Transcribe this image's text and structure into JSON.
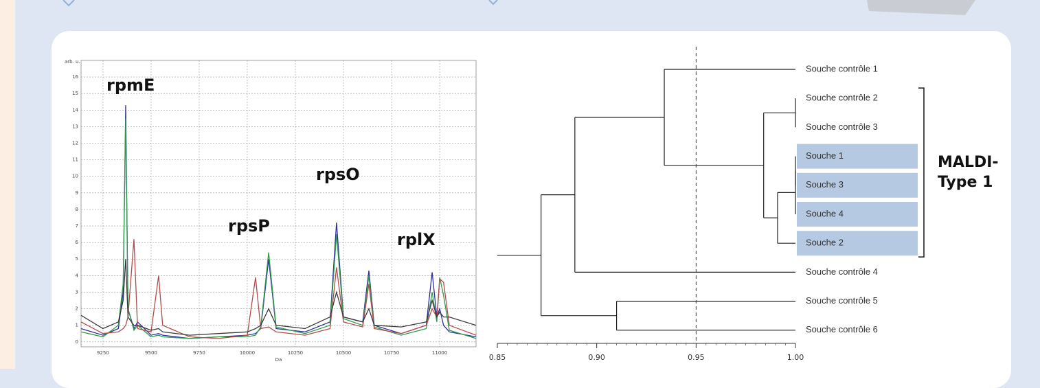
{
  "chart_data": [
    {
      "type": "line",
      "xlabel": "Da",
      "ylabel": "arb. u.",
      "x": [
        9136,
        9250,
        9330,
        9355,
        9368,
        9380,
        9411,
        9430,
        9500,
        9539,
        9560,
        9700,
        9850,
        10000,
        10043,
        10070,
        10111,
        10150,
        10300,
        10430,
        10464,
        10500,
        10600,
        10632,
        10660,
        10800,
        10930,
        10961,
        10985,
        11000,
        11020,
        11050,
        11189
      ],
      "series": [
        {
          "color": "#2c2f9c",
          "values": [
            0.8,
            0.4,
            0.8,
            3,
            14.3,
            2,
            0.8,
            1.2,
            0.4,
            0.5,
            0.4,
            0.2,
            0.3,
            0.4,
            0.5,
            0.8,
            5,
            0.8,
            0.6,
            1.2,
            7.2,
            1.5,
            1.2,
            4.3,
            1,
            0.5,
            1,
            4.2,
            1.5,
            2,
            1,
            0.6,
            0.3
          ]
        },
        {
          "color": "#2f9a4c",
          "values": [
            0.6,
            0.3,
            1,
            3.5,
            13.5,
            2,
            0.7,
            1,
            0.3,
            0.4,
            0.3,
            0.2,
            0.3,
            0.3,
            0.4,
            0.9,
            5.4,
            0.9,
            0.5,
            1,
            6.5,
            1.4,
            1,
            4,
            0.9,
            0.4,
            0.8,
            3,
            1.2,
            3.9,
            2.8,
            0.7,
            0.2
          ]
        },
        {
          "color": "#b24a4a",
          "values": [
            1.2,
            0.5,
            0.6,
            0.8,
            1,
            1.5,
            6.2,
            0.8,
            0.6,
            4,
            1,
            0.3,
            0.2,
            0.4,
            3.9,
            0.8,
            0.9,
            0.6,
            0.4,
            0.8,
            4.5,
            1.2,
            0.9,
            3.5,
            0.8,
            0.5,
            1,
            2,
            1.5,
            3.8,
            3.6,
            1,
            0.4
          ]
        },
        {
          "color": "#3a3a3a",
          "values": [
            1.6,
            0.8,
            1.2,
            2.5,
            5,
            1.5,
            1,
            1,
            0.7,
            0.8,
            0.6,
            0.4,
            0.5,
            0.6,
            0.8,
            1,
            2,
            1,
            0.8,
            1.5,
            3,
            1.5,
            1.2,
            2,
            1,
            0.9,
            1.2,
            2.5,
            1.5,
            1.8,
            1.5,
            1.5,
            1
          ]
        }
      ],
      "annotations": [
        "rpmE",
        "rpsP",
        "rpsO",
        "rplX"
      ],
      "xlim": [
        9136,
        11189
      ],
      "ylim": [
        -0.3,
        17
      ],
      "xticks": [
        9250,
        9500,
        9750,
        10000,
        10250,
        10500,
        10750,
        11000
      ],
      "yticks": [
        0,
        1,
        2,
        3,
        4,
        5,
        6,
        7,
        8,
        9,
        10,
        11,
        12,
        13,
        14,
        15,
        16
      ],
      "grid": true
    },
    {
      "type": "dendrogram",
      "leaves": [
        {
          "label": "Souche contrôle 1",
          "highlight": false
        },
        {
          "label": "Souche contrôle 2",
          "highlight": false
        },
        {
          "label": "Souche contrôle 3",
          "highlight": false
        },
        {
          "label": "Souche 1",
          "highlight": true
        },
        {
          "label": "Souche 3",
          "highlight": true
        },
        {
          "label": "Souche 4",
          "highlight": true
        },
        {
          "label": "Souche 2",
          "highlight": true
        },
        {
          "label": "Souche contrôle 4",
          "highlight": false
        },
        {
          "label": "Souche contrôle 5",
          "highlight": false
        },
        {
          "label": "Souche contrôle 6",
          "highlight": false
        }
      ],
      "merges": [
        [
          1,
          2,
          1.0
        ],
        [
          3,
          4,
          1.0
        ],
        [
          11,
          5,
          1.0
        ],
        [
          12,
          6,
          0.991
        ],
        [
          10,
          13,
          0.984
        ],
        [
          0,
          14,
          0.934
        ],
        [
          15,
          7,
          0.889
        ],
        [
          8,
          9,
          0.91
        ],
        [
          16,
          17,
          0.872
        ]
      ],
      "threshold": 0.95,
      "group": {
        "label": [
          "MALDI-",
          "Type 1"
        ],
        "first": 1,
        "last": 6
      },
      "xlim": [
        0.85,
        1.0
      ],
      "xticks": [
        0.85,
        {
          "value": 0.9,
          "label": "0.90"
        },
        0.95,
        {
          "value": 1.0,
          "label": "1.00"
        }
      ]
    }
  ]
}
